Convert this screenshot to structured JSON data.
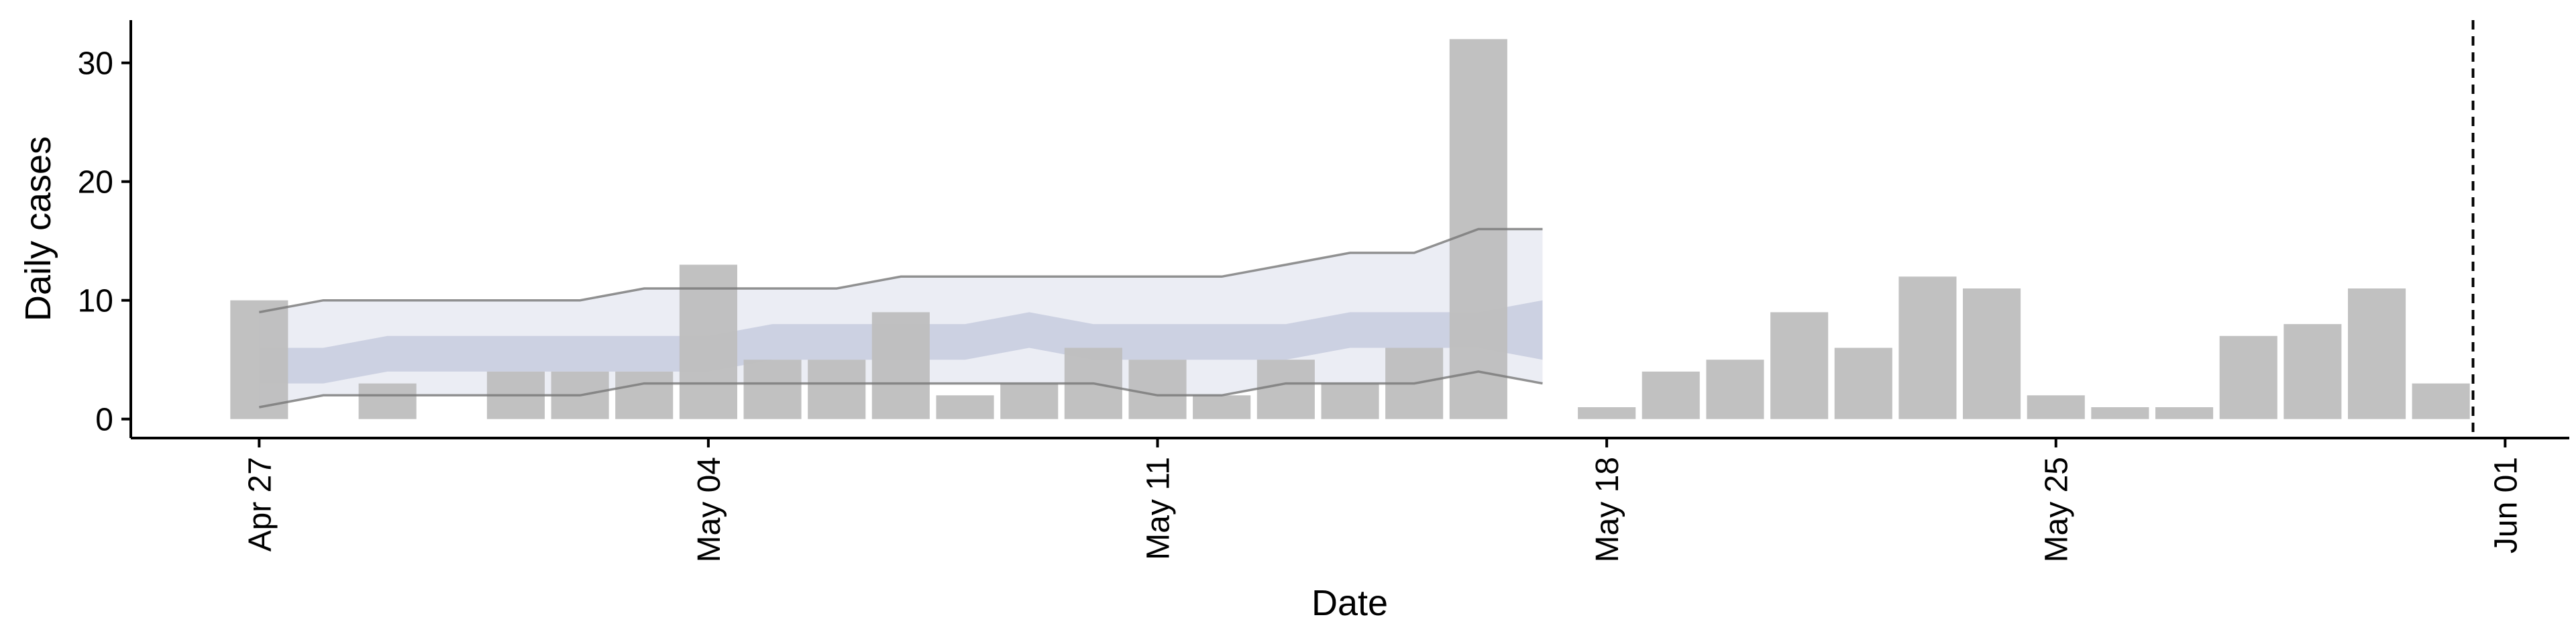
{
  "chart_data": {
    "type": "bar",
    "xlabel": "Date",
    "ylabel": "Daily cases",
    "xlim": [
      "2020-04-25",
      "2020-06-02"
    ],
    "ylim": [
      -1.6,
      33.6
    ],
    "y_ticks": [
      0,
      10,
      20,
      30
    ],
    "x_ticks": [
      {
        "date": "2020-04-27",
        "label": "Apr 27"
      },
      {
        "date": "2020-05-04",
        "label": "May 04"
      },
      {
        "date": "2020-05-11",
        "label": "May 11"
      },
      {
        "date": "2020-05-18",
        "label": "May 18"
      },
      {
        "date": "2020-05-25",
        "label": "May 25"
      },
      {
        "date": "2020-06-01",
        "label": "Jun 01"
      }
    ],
    "grid": false,
    "legend": "none",
    "series": [
      {
        "type": "bar",
        "color": "#bebebe",
        "points": [
          {
            "date": "2020-04-27",
            "value": 10
          },
          {
            "date": "2020-04-29",
            "value": 3
          },
          {
            "date": "2020-05-01",
            "value": 4
          },
          {
            "date": "2020-05-02",
            "value": 4
          },
          {
            "date": "2020-05-03",
            "value": 4
          },
          {
            "date": "2020-05-04",
            "value": 13
          },
          {
            "date": "2020-05-05",
            "value": 5
          },
          {
            "date": "2020-05-06",
            "value": 5
          },
          {
            "date": "2020-05-07",
            "value": 9
          },
          {
            "date": "2020-05-08",
            "value": 2
          },
          {
            "date": "2020-05-09",
            "value": 3
          },
          {
            "date": "2020-05-10",
            "value": 6
          },
          {
            "date": "2020-05-11",
            "value": 5
          },
          {
            "date": "2020-05-12",
            "value": 2
          },
          {
            "date": "2020-05-13",
            "value": 5
          },
          {
            "date": "2020-05-14",
            "value": 3
          },
          {
            "date": "2020-05-15",
            "value": 6
          },
          {
            "date": "2020-05-16",
            "value": 32
          },
          {
            "date": "2020-05-18",
            "value": 1
          },
          {
            "date": "2020-05-19",
            "value": 4
          },
          {
            "date": "2020-05-20",
            "value": 5
          },
          {
            "date": "2020-05-21",
            "value": 9
          },
          {
            "date": "2020-05-22",
            "value": 6
          },
          {
            "date": "2020-05-23",
            "value": 12
          },
          {
            "date": "2020-05-24",
            "value": 11
          },
          {
            "date": "2020-05-25",
            "value": 2
          },
          {
            "date": "2020-05-26",
            "value": 1
          },
          {
            "date": "2020-05-27",
            "value": 1
          },
          {
            "date": "2020-05-28",
            "value": 7
          },
          {
            "date": "2020-05-29",
            "value": 8
          },
          {
            "date": "2020-05-30",
            "value": 11
          },
          {
            "date": "2020-05-31",
            "value": 3
          }
        ]
      },
      {
        "type": "interval",
        "color": "#e8eaf2",
        "outline_color": "#777777",
        "points": [
          {
            "date": "2020-04-27",
            "lower": 1,
            "upper": 9
          },
          {
            "date": "2020-04-28",
            "lower": 2,
            "upper": 10
          },
          {
            "date": "2020-04-29",
            "lower": 2,
            "upper": 10
          },
          {
            "date": "2020-04-30",
            "lower": 2,
            "upper": 10
          },
          {
            "date": "2020-05-01",
            "lower": 2,
            "upper": 10
          },
          {
            "date": "2020-05-02",
            "lower": 2,
            "upper": 10
          },
          {
            "date": "2020-05-03",
            "lower": 3,
            "upper": 11
          },
          {
            "date": "2020-05-04",
            "lower": 3,
            "upper": 11
          },
          {
            "date": "2020-05-05",
            "lower": 3,
            "upper": 11
          },
          {
            "date": "2020-05-06",
            "lower": 3,
            "upper": 11
          },
          {
            "date": "2020-05-07",
            "lower": 3,
            "upper": 12
          },
          {
            "date": "2020-05-08",
            "lower": 3,
            "upper": 12
          },
          {
            "date": "2020-05-09",
            "lower": 3,
            "upper": 12
          },
          {
            "date": "2020-05-10",
            "lower": 3,
            "upper": 12
          },
          {
            "date": "2020-05-11",
            "lower": 2,
            "upper": 12
          },
          {
            "date": "2020-05-12",
            "lower": 2,
            "upper": 12
          },
          {
            "date": "2020-05-13",
            "lower": 3,
            "upper": 13
          },
          {
            "date": "2020-05-14",
            "lower": 3,
            "upper": 14
          },
          {
            "date": "2020-05-15",
            "lower": 3,
            "upper": 14
          },
          {
            "date": "2020-05-16",
            "lower": 4,
            "upper": 16
          },
          {
            "date": "2020-05-17",
            "lower": 3,
            "upper": 16
          }
        ]
      },
      {
        "type": "interval",
        "color": "#c4c9dd",
        "points": [
          {
            "date": "2020-04-27",
            "lower": 3,
            "upper": 6
          },
          {
            "date": "2020-04-28",
            "lower": 3,
            "upper": 6
          },
          {
            "date": "2020-04-29",
            "lower": 4,
            "upper": 7
          },
          {
            "date": "2020-04-30",
            "lower": 4,
            "upper": 7
          },
          {
            "date": "2020-05-01",
            "lower": 4,
            "upper": 7
          },
          {
            "date": "2020-05-02",
            "lower": 4,
            "upper": 7
          },
          {
            "date": "2020-05-03",
            "lower": 4,
            "upper": 7
          },
          {
            "date": "2020-05-04",
            "lower": 4,
            "upper": 7
          },
          {
            "date": "2020-05-05",
            "lower": 5,
            "upper": 8
          },
          {
            "date": "2020-05-06",
            "lower": 5,
            "upper": 8
          },
          {
            "date": "2020-05-07",
            "lower": 5,
            "upper": 8
          },
          {
            "date": "2020-05-08",
            "lower": 5,
            "upper": 8
          },
          {
            "date": "2020-05-09",
            "lower": 6,
            "upper": 9
          },
          {
            "date": "2020-05-10",
            "lower": 5,
            "upper": 8
          },
          {
            "date": "2020-05-11",
            "lower": 5,
            "upper": 8
          },
          {
            "date": "2020-05-12",
            "lower": 5,
            "upper": 8
          },
          {
            "date": "2020-05-13",
            "lower": 5,
            "upper": 8
          },
          {
            "date": "2020-05-14",
            "lower": 6,
            "upper": 9
          },
          {
            "date": "2020-05-15",
            "lower": 6,
            "upper": 9
          },
          {
            "date": "2020-05-16",
            "lower": 6,
            "upper": 9
          },
          {
            "date": "2020-05-17",
            "lower": 5,
            "upper": 10
          }
        ]
      }
    ],
    "reference_lines": [
      {
        "orientation": "vertical",
        "date": "2020-05-31",
        "style": "dashed",
        "color": "#000000"
      }
    ]
  }
}
